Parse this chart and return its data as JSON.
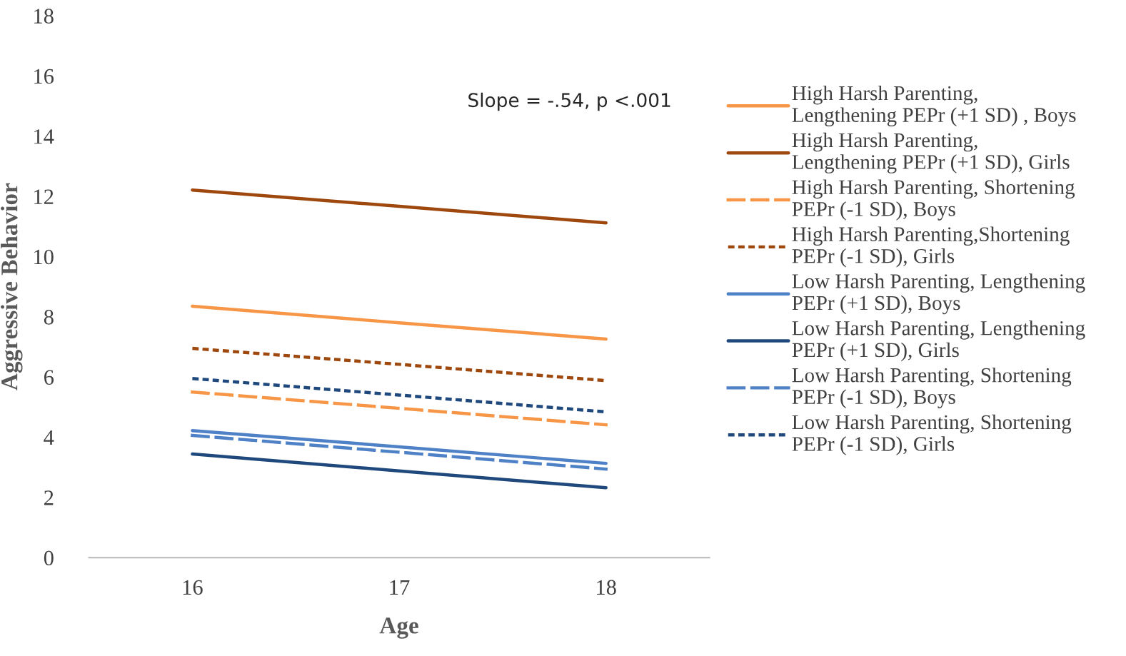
{
  "chart_data": {
    "type": "line",
    "categories": [
      "16",
      "17",
      "18"
    ],
    "xlabel": "Age",
    "ylabel": "Aggressive Behavior",
    "ylim": [
      0,
      18
    ],
    "yticks": [
      0,
      2,
      4,
      6,
      8,
      10,
      12,
      14,
      16,
      18
    ],
    "grid": false,
    "legend": "right",
    "marker": "none",
    "annotations": [
      {
        "text": "Slope = -.54, p <.001"
      }
    ],
    "series": [
      {
        "name": "High Harsh Parenting,\nLengthening PEPr (+1 SD) , Boys",
        "color": "#f79646",
        "line_style": "solid",
        "values": [
          8.35,
          7.8,
          7.26
        ]
      },
      {
        "name": "High Harsh Parenting,\nLengthening PEPr (+1 SD), Girls",
        "color": "#9e480e",
        "line_style": "solid",
        "values": [
          12.21,
          11.67,
          11.12
        ]
      },
      {
        "name": "High Harsh Parenting, Shortening\nPEPr (-1 SD), Boys",
        "color": "#f79646",
        "line_style": "dashed",
        "values": [
          5.5,
          4.96,
          4.41
        ]
      },
      {
        "name": "High Harsh Parenting,Shortening\nPEPr (-1 SD), Girls",
        "color": "#9e480e",
        "line_style": "dotted",
        "values": [
          6.95,
          6.42,
          5.88
        ]
      },
      {
        "name": "Low Harsh Parenting, Lengthening\nPEPr (+1 SD), Boys",
        "color": "#4f81c7",
        "line_style": "solid",
        "values": [
          4.22,
          3.68,
          3.13
        ]
      },
      {
        "name": "Low Harsh Parenting, Lengthening\nPEPr (+1 SD), Girls",
        "color": "#1f497d",
        "line_style": "solid",
        "values": [
          3.44,
          2.88,
          2.32
        ]
      },
      {
        "name": "Low Harsh Parenting, Shortening\nPEPr (-1 SD), Boys",
        "color": "#4f81c7",
        "line_style": "dashed",
        "values": [
          4.06,
          3.5,
          2.94
        ]
      },
      {
        "name": "Low Harsh Parenting, Shortening\nPEPr (-1 SD), Girls",
        "color": "#1f497d",
        "line_style": "dotted",
        "values": [
          5.95,
          5.4,
          4.84
        ]
      }
    ]
  }
}
